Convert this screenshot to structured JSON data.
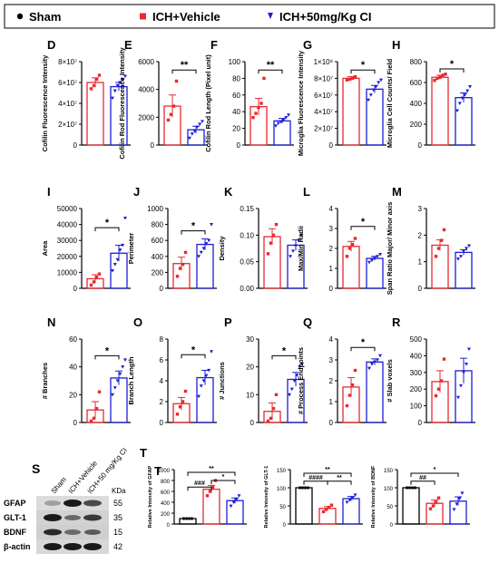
{
  "legend": {
    "items": [
      {
        "label": "Sham",
        "color": "#000000",
        "marker": "circle"
      },
      {
        "label": "ICH+Vehicle",
        "color": "#e8292f",
        "marker": "square"
      },
      {
        "label": "ICH+50mg/Kg CI",
        "color": "#1d1dd6",
        "marker": "triangle"
      }
    ]
  },
  "western_blot": {
    "panel_letter": "S",
    "lane_labels": [
      "Sham",
      "ICH+Vehicle",
      "ICH+50 mg/Kg CI"
    ],
    "kda_header": "KDa",
    "bands": [
      {
        "protein": "GFAP",
        "kda": "55"
      },
      {
        "protein": "GLT-1",
        "kda": "35"
      },
      {
        "protein": "BDNF",
        "kda": "15"
      },
      {
        "protein": "β-actin",
        "kda": "42"
      }
    ]
  },
  "chart_data": [
    {
      "letter": "D",
      "type": "bar",
      "ylabel": "Cofilin Fluorescence Intensity",
      "ylim": [
        0,
        80000000
      ],
      "ticks": [
        0,
        20000000,
        40000000,
        60000000,
        80000000
      ],
      "tick_labels": [
        "0",
        "2×10⁷",
        "4×10⁷",
        "6×10⁷",
        "8×10⁷"
      ],
      "series": [
        {
          "group": "ICH+Vehicle",
          "mean": 60000000,
          "sem": 4500000,
          "points": [
            54000000,
            57000000,
            63000000,
            67000000
          ]
        },
        {
          "group": "ICH+50mg/Kg CI",
          "mean": 56000000,
          "sem": 4000000,
          "points": [
            45000000,
            52000000,
            57000000,
            60000000,
            63000000,
            66000000
          ]
        }
      ],
      "brackets": []
    },
    {
      "letter": "E",
      "type": "bar",
      "ylabel": "Cofilin Rod Fluorescence Intensity",
      "ylim": [
        0,
        6000
      ],
      "ticks": [
        0,
        2000,
        4000,
        6000
      ],
      "tick_labels": [
        "0",
        "2000",
        "4000",
        "6000"
      ],
      "series": [
        {
          "group": "ICH+Vehicle",
          "mean": 2800,
          "sem": 800,
          "points": [
            1800,
            2200,
            2800,
            4600
          ]
        },
        {
          "group": "ICH+50mg/Kg CI",
          "mean": 1100,
          "sem": 250,
          "points": [
            500,
            800,
            1000,
            1300,
            1500,
            1700
          ]
        }
      ],
      "brackets": [
        {
          "from": 0,
          "to": 1,
          "y": 5400,
          "label": "**"
        }
      ]
    },
    {
      "letter": "F",
      "type": "bar",
      "ylabel": "Cofilin Rod Length (Pixel unit)",
      "ylim": [
        0,
        100
      ],
      "ticks": [
        0,
        20,
        40,
        60,
        80,
        100
      ],
      "tick_labels": [
        "0",
        "20",
        "40",
        "60",
        "80",
        "100"
      ],
      "series": [
        {
          "group": "ICH+Vehicle",
          "mean": 46,
          "sem": 10,
          "points": [
            33,
            38,
            45,
            50,
            80
          ]
        },
        {
          "group": "ICH+50mg/Kg CI",
          "mean": 29,
          "sem": 3,
          "points": [
            23,
            26,
            28,
            30,
            33,
            36
          ]
        }
      ],
      "brackets": [
        {
          "from": 0,
          "to": 1,
          "y": 90,
          "label": "**"
        }
      ]
    },
    {
      "letter": "G",
      "type": "bar",
      "ylabel": "Microglia Fluorescence Intensity",
      "ylim": [
        0,
        100000000
      ],
      "ticks": [
        0,
        20000000,
        40000000,
        60000000,
        80000000,
        100000000
      ],
      "tick_labels": [
        "0",
        "2×10⁷",
        "4×10⁷",
        "6×10⁷",
        "8×10⁷",
        "1×10⁸"
      ],
      "series": [
        {
          "group": "ICH+Vehicle",
          "mean": 80000000,
          "sem": 2000000,
          "points": [
            78000000,
            79000000,
            80000000,
            82000000
          ]
        },
        {
          "group": "ICH+50mg/Kg CI",
          "mean": 67000000,
          "sem": 4500000,
          "points": [
            54000000,
            60000000,
            66000000,
            70000000,
            75000000,
            78000000
          ]
        }
      ],
      "brackets": [
        {
          "from": 0,
          "to": 1,
          "y": 90000000,
          "label": "*"
        }
      ]
    },
    {
      "letter": "H",
      "type": "bar",
      "ylabel": "Microglia Cell Counts/ Field",
      "ylim": [
        0,
        800
      ],
      "ticks": [
        0,
        200,
        400,
        600,
        800
      ],
      "tick_labels": [
        "0",
        "200",
        "400",
        "600",
        "800"
      ],
      "series": [
        {
          "group": "ICH+Vehicle",
          "mean": 650,
          "sem": 20,
          "points": [
            620,
            640,
            650,
            670,
            680
          ]
        },
        {
          "group": "ICH+50mg/Kg CI",
          "mean": 455,
          "sem": 45,
          "points": [
            330,
            400,
            450,
            480,
            520,
            560
          ]
        }
      ],
      "brackets": [
        {
          "from": 0,
          "to": 1,
          "y": 730,
          "label": "*"
        }
      ]
    },
    {
      "letter": "I",
      "type": "bar",
      "ylabel": "Area",
      "ylim": [
        0,
        50000
      ],
      "ticks": [
        0,
        10000,
        20000,
        30000,
        40000,
        50000
      ],
      "tick_labels": [
        "0",
        "10000",
        "20000",
        "30000",
        "40000",
        "50000"
      ],
      "series": [
        {
          "group": "ICH+Vehicle",
          "mean": 6000,
          "sem": 2500,
          "points": [
            2000,
            4000,
            7000,
            9000
          ]
        },
        {
          "group": "ICH+50mg/Kg CI",
          "mean": 22000,
          "sem": 5000,
          "points": [
            11000,
            15000,
            18000,
            24000,
            27000,
            44000
          ]
        }
      ],
      "brackets": [
        {
          "from": 0,
          "to": 1,
          "y": 38000,
          "label": "*"
        }
      ]
    },
    {
      "letter": "J",
      "type": "bar",
      "ylabel": "Perimeter",
      "ylim": [
        0,
        1000
      ],
      "ticks": [
        0,
        200,
        400,
        600,
        800,
        1000
      ],
      "tick_labels": [
        "0",
        "200",
        "400",
        "600",
        "800",
        "1000"
      ],
      "series": [
        {
          "group": "ICH+Vehicle",
          "mean": 310,
          "sem": 80,
          "points": [
            150,
            250,
            300,
            450
          ]
        },
        {
          "group": "ICH+50mg/Kg CI",
          "mean": 550,
          "sem": 70,
          "points": [
            400,
            450,
            500,
            560,
            600,
            800
          ]
        }
      ],
      "brackets": [
        {
          "from": 0,
          "to": 1,
          "y": 720,
          "label": "*"
        }
      ]
    },
    {
      "letter": "K",
      "type": "bar",
      "ylabel": "Density",
      "ylim": [
        0,
        0.15
      ],
      "ticks": [
        0,
        0.05,
        0.1,
        0.15
      ],
      "tick_labels": [
        "0.00",
        "0.05",
        "0.10",
        "0.15"
      ],
      "series": [
        {
          "group": "ICH+Vehicle",
          "mean": 0.097,
          "sem": 0.015,
          "points": [
            0.065,
            0.085,
            0.1,
            0.12
          ]
        },
        {
          "group": "ICH+50mg/Kg CI",
          "mean": 0.081,
          "sem": 0.01,
          "points": [
            0.06,
            0.07,
            0.08,
            0.09,
            0.1
          ]
        }
      ],
      "brackets": []
    },
    {
      "letter": "L",
      "type": "bar",
      "ylabel": "Max/Min Radii",
      "ylim": [
        0,
        4
      ],
      "ticks": [
        0,
        1,
        2,
        3,
        4
      ],
      "tick_labels": [
        "0",
        "1",
        "2",
        "3",
        "4"
      ],
      "series": [
        {
          "group": "ICH+Vehicle",
          "mean": 2.1,
          "sem": 0.25,
          "points": [
            1.6,
            2.0,
            2.2,
            2.5
          ]
        },
        {
          "group": "ICH+50mg/Kg CI",
          "mean": 1.5,
          "sem": 0.1,
          "points": [
            1.3,
            1.4,
            1.5,
            1.6,
            1.7
          ]
        }
      ],
      "brackets": [
        {
          "from": 0,
          "to": 1,
          "y": 3.1,
          "label": "*"
        }
      ]
    },
    {
      "letter": "M",
      "type": "bar",
      "ylabel": "Span Ratio Major/ Minor axis",
      "ylim": [
        0,
        3
      ],
      "ticks": [
        0,
        1,
        2,
        3
      ],
      "tick_labels": [
        "0",
        "1",
        "2",
        "3"
      ],
      "series": [
        {
          "group": "ICH+Vehicle",
          "mean": 1.62,
          "sem": 0.2,
          "points": [
            1.2,
            1.5,
            1.8,
            2.2
          ]
        },
        {
          "group": "ICH+50mg/Kg CI",
          "mean": 1.35,
          "sem": 0.1,
          "points": [
            1.1,
            1.2,
            1.4,
            1.5,
            1.6
          ]
        }
      ],
      "brackets": []
    },
    {
      "letter": "N",
      "type": "bar",
      "ylabel": "# Branches",
      "ylim": [
        0,
        60
      ],
      "ticks": [
        0,
        20,
        40,
        60
      ],
      "tick_labels": [
        "0",
        "20",
        "40",
        "60"
      ],
      "series": [
        {
          "group": "ICH+Vehicle",
          "mean": 9,
          "sem": 6,
          "points": [
            1,
            3,
            10,
            22
          ]
        },
        {
          "group": "ICH+50mg/Kg CI",
          "mean": 32,
          "sem": 5,
          "points": [
            20,
            25,
            30,
            35,
            40,
            45
          ]
        }
      ],
      "brackets": [
        {
          "from": 0,
          "to": 1,
          "y": 48,
          "label": "*"
        }
      ]
    },
    {
      "letter": "O",
      "type": "bar",
      "ylabel": "Branch Length",
      "ylim": [
        0,
        8
      ],
      "ticks": [
        0,
        2,
        4,
        6,
        8
      ],
      "tick_labels": [
        "0",
        "2",
        "4",
        "6",
        "8"
      ],
      "series": [
        {
          "group": "ICH+Vehicle",
          "mean": 1.8,
          "sem": 0.6,
          "points": [
            0.8,
            1.5,
            2.0,
            3.0
          ]
        },
        {
          "group": "ICH+50mg/Kg CI",
          "mean": 4.3,
          "sem": 0.7,
          "points": [
            2.5,
            3.5,
            4.0,
            4.5,
            5.0,
            6.8
          ]
        }
      ],
      "brackets": [
        {
          "from": 0,
          "to": 1,
          "y": 6.5,
          "label": "*"
        }
      ]
    },
    {
      "letter": "P",
      "type": "bar",
      "ylabel": "# Junctions",
      "ylim": [
        0,
        30
      ],
      "ticks": [
        0,
        10,
        20,
        30
      ],
      "tick_labels": [
        "0",
        "10",
        "20",
        "30"
      ],
      "series": [
        {
          "group": "ICH+Vehicle",
          "mean": 4,
          "sem": 3,
          "points": [
            0.5,
            1.5,
            5,
            10
          ]
        },
        {
          "group": "ICH+50mg/Kg CI",
          "mean": 15.5,
          "sem": 2.5,
          "points": [
            10,
            12,
            15,
            17,
            20,
            21
          ]
        }
      ],
      "brackets": [
        {
          "from": 0,
          "to": 1,
          "y": 24,
          "label": "*"
        }
      ]
    },
    {
      "letter": "Q",
      "type": "bar",
      "ylabel": "# Process Endpoints",
      "ylim": [
        0,
        4
      ],
      "ticks": [
        0,
        1,
        2,
        3,
        4
      ],
      "tick_labels": [
        "0",
        "1",
        "2",
        "3",
        "4"
      ],
      "series": [
        {
          "group": "ICH+Vehicle",
          "mean": 1.7,
          "sem": 0.45,
          "points": [
            0.8,
            1.3,
            1.8,
            2.5
          ]
        },
        {
          "group": "ICH+50mg/Kg CI",
          "mean": 2.9,
          "sem": 0.15,
          "points": [
            2.6,
            2.8,
            2.9,
            3.0,
            3.2
          ]
        }
      ],
      "brackets": [
        {
          "from": 0,
          "to": 1,
          "y": 3.6,
          "label": "*"
        }
      ]
    },
    {
      "letter": "R",
      "type": "bar",
      "ylabel": "# Slab voxels",
      "ylim": [
        0,
        500
      ],
      "ticks": [
        0,
        100,
        200,
        300,
        400,
        500
      ],
      "tick_labels": [
        "0",
        "100",
        "200",
        "300",
        "400",
        "500"
      ],
      "series": [
        {
          "group": "ICH+Vehicle",
          "mean": 245,
          "sem": 65,
          "points": [
            160,
            200,
            250,
            380
          ]
        },
        {
          "group": "ICH+50mg/Kg CI",
          "mean": 310,
          "sem": 75,
          "points": [
            150,
            220,
            300,
            350,
            440
          ]
        }
      ],
      "brackets": []
    },
    {
      "letter": "T",
      "type": "bar",
      "ylabel": "Relative Intensity of GFAP",
      "ylim": [
        0,
        1000
      ],
      "ticks": [
        0,
        200,
        400,
        600,
        800,
        1000
      ],
      "tick_labels": [
        "0",
        "200",
        "400",
        "600",
        "800",
        "1000"
      ],
      "series": [
        {
          "group": "Sham",
          "mean": 100,
          "sem": 0,
          "points": [
            100,
            100,
            100,
            100
          ]
        },
        {
          "group": "ICH+Vehicle",
          "mean": 640,
          "sem": 70,
          "points": [
            520,
            600,
            680,
            800
          ]
        },
        {
          "group": "ICH+50mg/Kg CI",
          "mean": 430,
          "sem": 50,
          "points": [
            330,
            400,
            450,
            520
          ]
        }
      ],
      "brackets": [
        {
          "from": 0,
          "to": 2,
          "y": 950,
          "label": "**"
        },
        {
          "from": 1,
          "to": 2,
          "y": 800,
          "label": "*"
        },
        {
          "from": 0,
          "to": 1,
          "y": 680,
          "label": "###"
        }
      ]
    },
    {
      "type": "bar",
      "ylabel": "Relative Intensity of GLT-1",
      "ylim": [
        0,
        150
      ],
      "ticks": [
        0,
        50,
        100,
        150
      ],
      "tick_labels": [
        "0",
        "50",
        "100",
        "150"
      ],
      "series": [
        {
          "group": "Sham",
          "mean": 100,
          "sem": 0,
          "points": [
            100,
            100,
            100,
            100
          ]
        },
        {
          "group": "ICH+Vehicle",
          "mean": 43,
          "sem": 5,
          "points": [
            34,
            40,
            46,
            52
          ]
        },
        {
          "group": "ICH+50mg/Kg CI",
          "mean": 70,
          "sem": 6,
          "points": [
            60,
            66,
            72,
            80
          ]
        }
      ],
      "brackets": [
        {
          "from": 0,
          "to": 2,
          "y": 140,
          "label": "**"
        },
        {
          "from": 0,
          "to": 1,
          "y": 118,
          "label": "####"
        },
        {
          "from": 1,
          "to": 2,
          "y": 118,
          "label": "**"
        }
      ]
    },
    {
      "type": "bar",
      "ylabel": "Relative Intensity of BDNF",
      "ylim": [
        0,
        150
      ],
      "ticks": [
        0,
        50,
        100,
        150
      ],
      "tick_labels": [
        "0",
        "50",
        "100",
        "150"
      ],
      "series": [
        {
          "group": "Sham",
          "mean": 100,
          "sem": 0,
          "points": [
            100,
            100,
            100,
            100
          ]
        },
        {
          "group": "ICH+Vehicle",
          "mean": 57,
          "sem": 9,
          "points": [
            42,
            50,
            60,
            72
          ]
        },
        {
          "group": "ICH+50mg/Kg CI",
          "mean": 63,
          "sem": 12,
          "points": [
            40,
            55,
            70,
            85
          ]
        }
      ],
      "brackets": [
        {
          "from": 0,
          "to": 2,
          "y": 140,
          "label": "*"
        },
        {
          "from": 0,
          "to": 1,
          "y": 118,
          "label": "##"
        }
      ]
    }
  ]
}
